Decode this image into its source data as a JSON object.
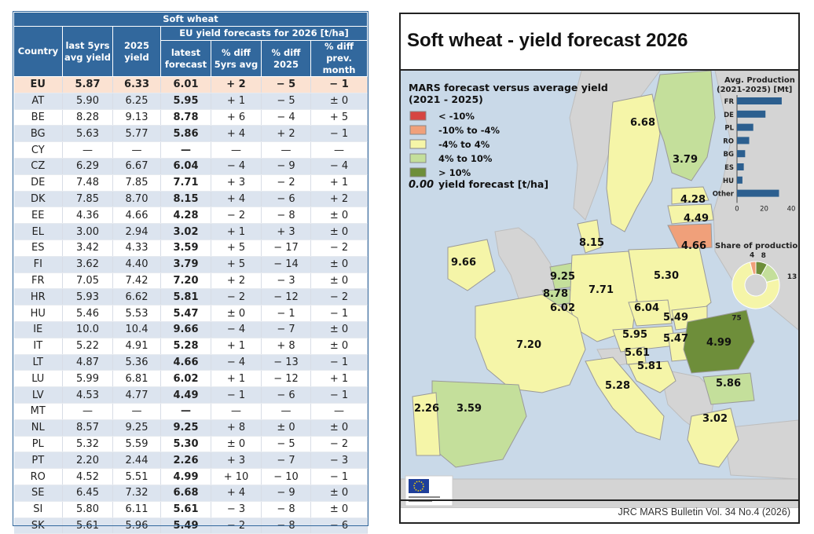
{
  "table": {
    "title": "Soft wheat",
    "group_header": "EU yield forecasts for 2026 [t/ha]",
    "columns": [
      "Country",
      "last 5yrs avg yield",
      "2025 yield",
      "latest forecast",
      "% diff 5yrs avg",
      "% diff 2025",
      "% diff prev. month"
    ],
    "rows": [
      [
        "EU",
        "5.87",
        "6.33",
        "6.01",
        "+ 2",
        "− 5",
        "− 1"
      ],
      [
        "AT",
        "5.90",
        "6.25",
        "5.95",
        "+ 1",
        "− 5",
        "± 0"
      ],
      [
        "BE",
        "8.28",
        "9.13",
        "8.78",
        "+ 6",
        "− 4",
        "+ 5"
      ],
      [
        "BG",
        "5.63",
        "5.77",
        "5.86",
        "+ 4",
        "+ 2",
        "− 1"
      ],
      [
        "CY",
        "—",
        "—",
        "—",
        "—",
        "—",
        "—"
      ],
      [
        "CZ",
        "6.29",
        "6.67",
        "6.04",
        "− 4",
        "− 9",
        "− 4"
      ],
      [
        "DE",
        "7.48",
        "7.85",
        "7.71",
        "+ 3",
        "− 2",
        "+ 1"
      ],
      [
        "DK",
        "7.85",
        "8.70",
        "8.15",
        "+ 4",
        "− 6",
        "+ 2"
      ],
      [
        "EE",
        "4.36",
        "4.66",
        "4.28",
        "− 2",
        "− 8",
        "± 0"
      ],
      [
        "EL",
        "3.00",
        "2.94",
        "3.02",
        "+ 1",
        "+ 3",
        "± 0"
      ],
      [
        "ES",
        "3.42",
        "4.33",
        "3.59",
        "+ 5",
        "− 17",
        "− 2"
      ],
      [
        "FI",
        "3.62",
        "4.40",
        "3.79",
        "+ 5",
        "− 14",
        "± 0"
      ],
      [
        "FR",
        "7.05",
        "7.42",
        "7.20",
        "+ 2",
        "− 3",
        "± 0"
      ],
      [
        "HR",
        "5.93",
        "6.62",
        "5.81",
        "− 2",
        "− 12",
        "− 2"
      ],
      [
        "HU",
        "5.46",
        "5.53",
        "5.47",
        "± 0",
        "− 1",
        "− 1"
      ],
      [
        "IE",
        "10.0",
        "10.4",
        "9.66",
        "− 4",
        "− 7",
        "± 0"
      ],
      [
        "IT",
        "5.22",
        "4.91",
        "5.28",
        "+ 1",
        "+ 8",
        "± 0"
      ],
      [
        "LT",
        "4.87",
        "5.36",
        "4.66",
        "− 4",
        "− 13",
        "− 1"
      ],
      [
        "LU",
        "5.99",
        "6.81",
        "6.02",
        "+ 1",
        "− 12",
        "+ 1"
      ],
      [
        "LV",
        "4.53",
        "4.77",
        "4.49",
        "− 1",
        "− 6",
        "− 1"
      ],
      [
        "MT",
        "—",
        "—",
        "—",
        "—",
        "—",
        "—"
      ],
      [
        "NL",
        "8.57",
        "9.25",
        "9.25",
        "+ 8",
        "± 0",
        "± 0"
      ],
      [
        "PL",
        "5.32",
        "5.59",
        "5.30",
        "± 0",
        "− 5",
        "− 2"
      ],
      [
        "PT",
        "2.20",
        "2.44",
        "2.26",
        "+ 3",
        "− 7",
        "− 3"
      ],
      [
        "RO",
        "4.52",
        "5.51",
        "4.99",
        "+ 10",
        "− 10",
        "− 1"
      ],
      [
        "SE",
        "6.45",
        "7.32",
        "6.68",
        "+ 4",
        "− 9",
        "± 0"
      ],
      [
        "SI",
        "5.80",
        "6.11",
        "5.61",
        "− 3",
        "− 8",
        "± 0"
      ],
      [
        "SK",
        "5.61",
        "5.96",
        "5.49",
        "− 2",
        "− 8",
        "− 6"
      ]
    ]
  },
  "map": {
    "title": "Soft wheat - yield forecast 2026",
    "legend_title": "MARS forecast versus average yield (2021 - 2025)",
    "legend_items": [
      {
        "label": "< -10%",
        "color": "#d64541"
      },
      {
        "label": "-10% to -4%",
        "color": "#f0a07a"
      },
      {
        "label": "-4% to 4%",
        "color": "#f5f5a8"
      },
      {
        "label": "4% to 10%",
        "color": "#c4df9b"
      },
      {
        "label": "> 10%",
        "color": "#6e8e3a"
      }
    ],
    "value_legend_num": "0.00",
    "value_legend_text": "yield forecast [t/ha]",
    "footer": "JRC MARS Bulletin Vol. 34 No.4 (2026)"
  },
  "chart_data": [
    {
      "type": "bar",
      "title": "Avg. Production (2021-2025) [Mt]",
      "categories": [
        "FR",
        "DE",
        "PL",
        "RO",
        "BG",
        "ES",
        "HU",
        "Other"
      ],
      "values": [
        33,
        21,
        12,
        9,
        6,
        5,
        4,
        31
      ],
      "xlim": [
        0,
        40
      ],
      "xticks": [
        "0",
        "20",
        "40"
      ],
      "color": "#2c5f8f"
    },
    {
      "type": "pie",
      "title": "Share of production[%]",
      "labels": [
        "4",
        "8",
        "13",
        "75"
      ],
      "values": [
        4,
        8,
        13,
        75
      ],
      "colors": [
        "#f0a07a",
        "#6e8e3a",
        "#c4df9b",
        "#f5f5a8"
      ]
    }
  ],
  "map_labels": [
    "6.68",
    "3.79",
    "4.28",
    "4.49",
    "4.66",
    "8.15",
    "9.66",
    "9.25",
    "8.78",
    "6.02",
    "7.71",
    "5.30",
    "6.04",
    "5.49",
    "5.47",
    "5.95",
    "5.61",
    "5.81",
    "4.99",
    "7.20",
    "5.28",
    "5.86",
    "3.02",
    "2.26",
    "3.59"
  ]
}
